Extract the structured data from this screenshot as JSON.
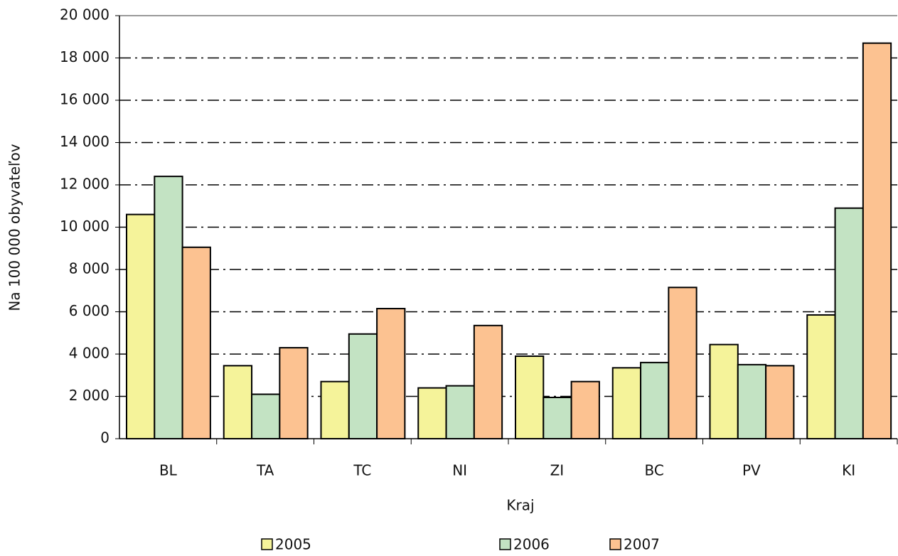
{
  "chart_data": {
    "type": "bar",
    "categories": [
      "BL",
      "TA",
      "TC",
      "NI",
      "ZI",
      "BC",
      "PV",
      "KI"
    ],
    "series": [
      {
        "name": "2005",
        "color": "#f5f39a",
        "values": [
          10600,
          3450,
          2700,
          2400,
          3900,
          3350,
          4450,
          5850
        ]
      },
      {
        "name": "2006",
        "color": "#c3e3c3",
        "values": [
          12400,
          2100,
          4950,
          2500,
          1950,
          3600,
          3500,
          10900
        ]
      },
      {
        "name": "2007",
        "color": "#fcc291",
        "values": [
          9050,
          4300,
          6150,
          5350,
          2700,
          7150,
          3450,
          18700
        ]
      }
    ],
    "x_label": "Kraj",
    "y_label": "Na 100 000 obyvateľov",
    "ylim": [
      0,
      20000
    ],
    "yticks": [
      0,
      {
        "value": 2000,
        "label": "2 000"
      },
      {
        "value": 4000,
        "label": "4 000"
      },
      {
        "value": 6000,
        "label": "6 000"
      },
      {
        "value": 8000,
        "label": "8 000"
      },
      {
        "value": 10000,
        "label": "10 000"
      },
      {
        "value": 12000,
        "label": "12 000"
      },
      {
        "value": 14000,
        "label": "14 000"
      },
      {
        "value": 16000,
        "label": "16 000"
      },
      {
        "value": 18000,
        "label": "18 000"
      },
      {
        "value": 20000,
        "label": "20 000"
      }
    ],
    "grid": true,
    "legend": "bottom"
  }
}
